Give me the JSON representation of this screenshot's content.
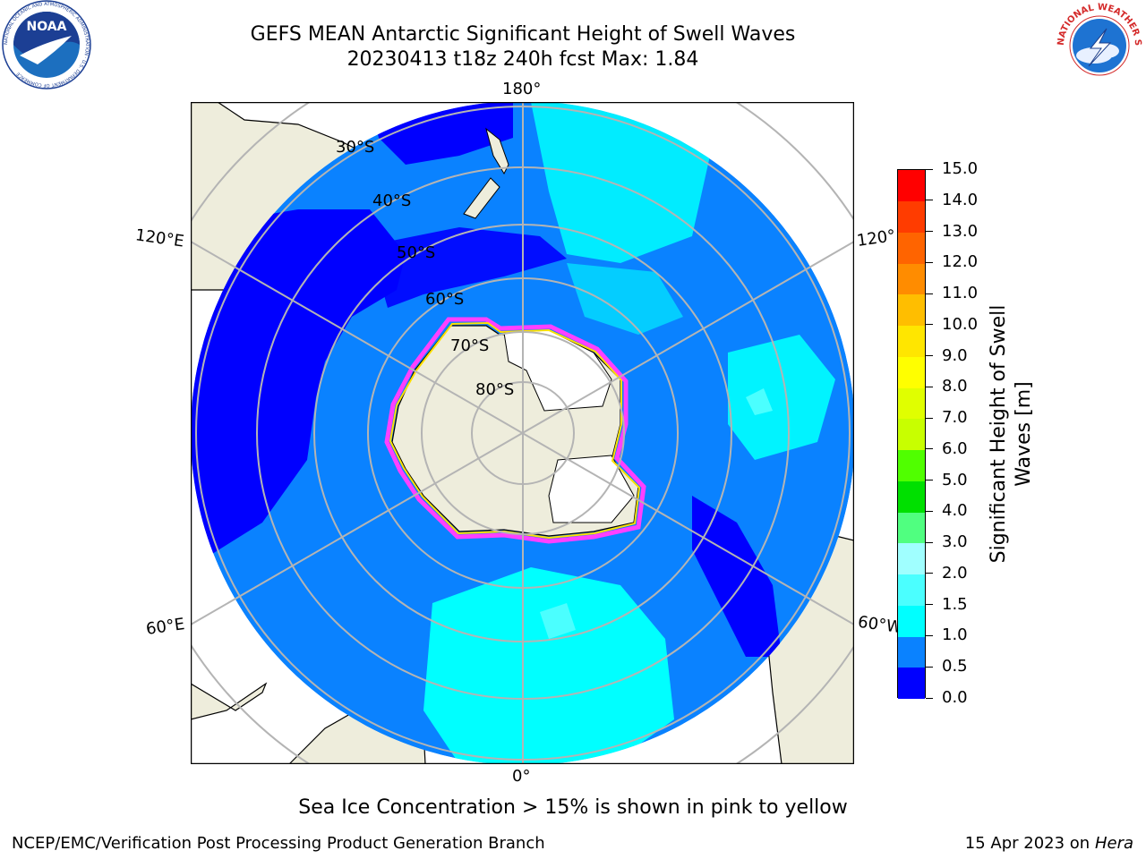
{
  "header": {
    "title_line1": "GEFS MEAN Antarctic Significant Height of Swell Waves",
    "title_line2": "20230413 t18z 240h fcst   Max: 1.84"
  },
  "logos": {
    "left": {
      "text": "NOAA",
      "ring_text": "NATIONAL OCEANIC AND ATMOSPHERIC ADMINISTRATION · U.S. DEPARTMENT OF COMMERCE",
      "icon": "noaa-logo-icon"
    },
    "right": {
      "ring_text": "NATIONAL WEATHER SERVICE",
      "icon": "nws-logo-icon"
    }
  },
  "map": {
    "lon_labels": {
      "top": "180°",
      "bottom": "0°",
      "left_upper": "120°E",
      "left_lower": "60°E",
      "right_upper": "120°",
      "right_lower": "60°W"
    },
    "lat_labels": [
      "30°S",
      "40°S",
      "50°S",
      "60°S",
      "70°S",
      "80°S"
    ],
    "colors": {
      "land": "#eeeddc",
      "ocean_low": "#0000ff",
      "ocean_mid": "#0a82ff",
      "ocean_high": "#00ffff",
      "grid": "#b4b4b4",
      "ice_edge_pink": "#ff40ff",
      "ice_edge_yellow": "#ffe000"
    }
  },
  "colorbar": {
    "title_line1": "Significant Height of Swell",
    "title_line2": "Waves [m]",
    "ticks": [
      "0.0",
      "0.5",
      "1.0",
      "1.5",
      "2.0",
      "3.0",
      "4.0",
      "5.0",
      "6.0",
      "7.0",
      "8.0",
      "9.0",
      "10.0",
      "11.0",
      "12.0",
      "13.0",
      "14.0",
      "15.0"
    ],
    "colors": [
      "#0000ff",
      "#0a82ff",
      "#00ffff",
      "#4bffff",
      "#a0ffff",
      "#50ff80",
      "#00e000",
      "#50ff00",
      "#c8ff00",
      "#e0ff00",
      "#ffff00",
      "#ffe600",
      "#ffbe00",
      "#ff8c00",
      "#ff6400",
      "#ff3c00",
      "#ff0000"
    ]
  },
  "notes": {
    "sea_ice": "Sea Ice Concentration > 15% is shown in pink to yellow"
  },
  "footer": {
    "left": "NCEP/EMC/Verification Post Processing Product Generation Branch",
    "date": "15 Apr 2023 on ",
    "machine": "Hera"
  }
}
